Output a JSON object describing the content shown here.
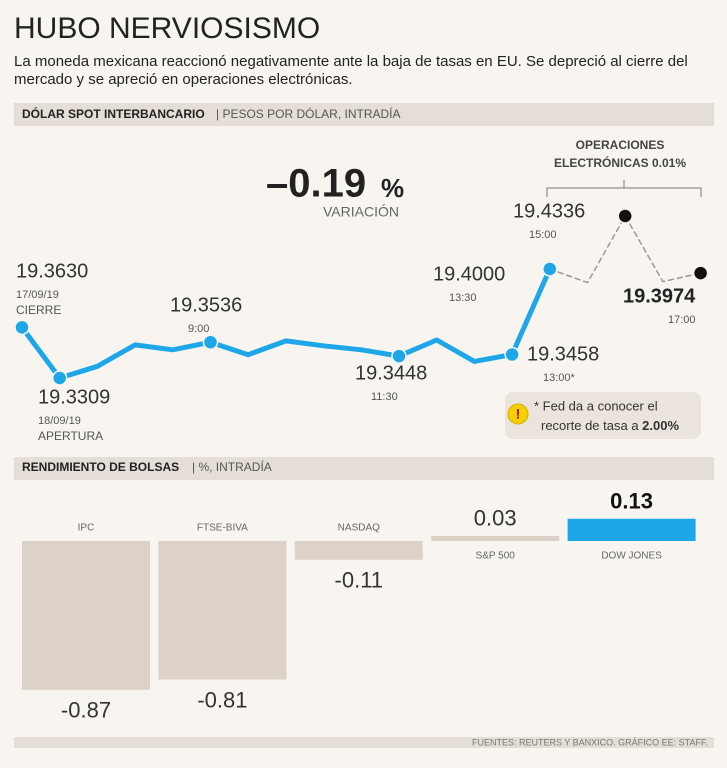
{
  "header": {
    "title": "HUBO NERVIOSISMO",
    "subtitle_lines": [
      "La moneda mexicana reaccionó negativamente ante la baja de tasas en EU. Se depreció al cierre del",
      "mercado y se apreció en operaciones electrónicas."
    ]
  },
  "chart_data": [
    {
      "type": "line",
      "title": "DÓLAR SPOT INTERBANCARIO",
      "subtitle": "| PESOS POR DÓLAR, INTRADÍA",
      "change_text": "–0.19",
      "change_unit": "%",
      "change_caption": "VARIACIÓN",
      "bracket_label": [
        "OPERACIONES",
        "ELECTRÓNICAS 0.01%"
      ],
      "note": [
        "* Fed da a conocer el",
        "recorte de tasa a ",
        "2.00%"
      ],
      "categories": [
        "17/09/19",
        "18/09/19",
        null,
        null,
        null,
        "9:00",
        null,
        null,
        null,
        null,
        "11:30",
        null,
        null,
        "13:00*",
        "13:30",
        null,
        "15:00",
        null,
        "17:00"
      ],
      "point_notes": [
        "CIERRE",
        "APERTURA",
        null,
        null,
        null,
        null,
        null,
        null,
        null,
        null,
        null,
        null,
        null,
        null,
        null,
        null,
        null,
        null,
        null
      ],
      "series": [
        {
          "color": "#1ea7e8",
          "dashed": false,
          "values": [
            19.363,
            19.3309,
            19.3383,
            19.3519,
            19.3488,
            19.3536,
            19.3457,
            19.3544,
            19.3513,
            19.3488,
            19.3448,
            19.355,
            19.3414,
            19.3458,
            19.4,
            null,
            null,
            null,
            null
          ],
          "value_labels": [
            "19.3630",
            "19.3309",
            null,
            null,
            null,
            "19.3536",
            null,
            null,
            null,
            null,
            "19.3448",
            null,
            null,
            "19.3458",
            "19.4000",
            null,
            null,
            null,
            null
          ]
        },
        {
          "color": "#999999",
          "marker_color": "#111111",
          "dashed": true,
          "values": [
            null,
            null,
            null,
            null,
            null,
            null,
            null,
            null,
            null,
            null,
            null,
            null,
            null,
            null,
            19.4,
            19.3914,
            19.4336,
            19.392,
            19.3974
          ],
          "value_labels": [
            null,
            null,
            null,
            null,
            null,
            null,
            null,
            null,
            null,
            null,
            null,
            null,
            null,
            null,
            null,
            null,
            "19.4336",
            null,
            "19.3974"
          ]
        }
      ]
    },
    {
      "type": "bar",
      "title": "RENDIMIENTO DE BOLSAS",
      "subtitle": "| %, INTRADÍA",
      "categories": [
        "IPC",
        "FTSE-BIVA",
        "NASDAQ",
        "S&P 500",
        "DOW JONES"
      ],
      "values": [
        -0.87,
        -0.81,
        -0.11,
        0.03,
        0.13
      ],
      "colors": [
        "#dcd2c7",
        "#dcd2c7",
        "#dcd2c7",
        "#dcd2c7",
        "#1ea7e8"
      ]
    }
  ],
  "footer": "FUENTES: REUTERS Y BANXICO. GRÁFICO EE: STAFF."
}
